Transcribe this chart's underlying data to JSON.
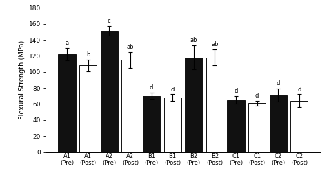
{
  "categories": [
    "A1\n(Pre)",
    "A1\n(Post)",
    "A2\n(Pre)",
    "A2\n(Post)",
    "B1\n(Pre)",
    "B1\n(Post)",
    "B2\n(Pre)",
    "B2\n(Post)",
    "C1\n(Pre)",
    "C1\n(Post)",
    "C2\n(Pre)",
    "C2\n(Post)"
  ],
  "values": [
    122,
    108,
    151,
    115,
    70,
    68,
    118,
    118,
    65,
    61,
    71,
    64
  ],
  "errors": [
    8,
    7,
    6,
    10,
    4,
    4,
    15,
    10,
    5,
    3,
    8,
    8
  ],
  "colors": [
    "#111111",
    "#ffffff",
    "#111111",
    "#ffffff",
    "#111111",
    "#ffffff",
    "#111111",
    "#ffffff",
    "#111111",
    "#ffffff",
    "#111111",
    "#ffffff"
  ],
  "edge_colors": [
    "#111111",
    "#111111",
    "#111111",
    "#111111",
    "#111111",
    "#111111",
    "#111111",
    "#111111",
    "#111111",
    "#111111",
    "#111111",
    "#111111"
  ],
  "letters": [
    "a",
    "b",
    "c",
    "ab",
    "d",
    "d",
    "ab",
    "ab",
    "d",
    "d",
    "d",
    "d"
  ],
  "ylabel": "Flexural Strength (MPa)",
  "ylim": [
    0,
    180
  ],
  "yticks": [
    0.0,
    20.0,
    40.0,
    60.0,
    80.0,
    100.0,
    120.0,
    140.0,
    160.0,
    180.0
  ],
  "bar_width": 0.82,
  "figsize": [
    4.74,
    2.84
  ],
  "dpi": 100
}
